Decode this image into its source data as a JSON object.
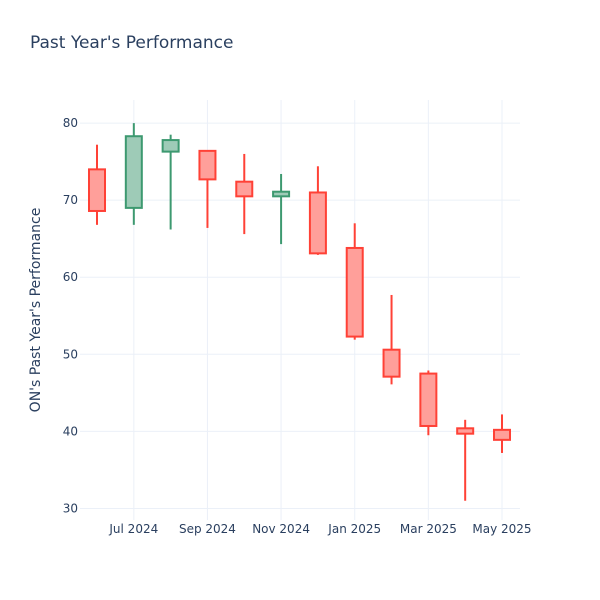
{
  "page": {
    "title": "Past Year's Performance"
  },
  "chart_data": {
    "type": "candlestick",
    "title": "Past Year's Performance",
    "xlabel": "",
    "ylabel": "ON's Past Year's Performance",
    "ylim": [
      28.5,
      83
    ],
    "y_ticks": [
      30,
      40,
      50,
      60,
      70,
      80
    ],
    "x_ticks": [
      "Jul 2024",
      "Sep 2024",
      "Nov 2024",
      "Jan 2025",
      "Mar 2025",
      "May 2025"
    ],
    "grid": true,
    "colors": {
      "up": "#3d9970",
      "up_fill": "#9ecbb7",
      "down": "#ff4136",
      "down_fill": "#ff9f9a",
      "grid": "#ebf0f8",
      "text": "#2a3f5f"
    },
    "candles": [
      {
        "month": "Jun 2024",
        "open": 74.0,
        "high": 77.2,
        "low": 66.8,
        "close": 68.6
      },
      {
        "month": "Jul 2024",
        "open": 69.0,
        "high": 80.0,
        "low": 66.8,
        "close": 78.3
      },
      {
        "month": "Aug 2024",
        "open": 76.3,
        "high": 78.5,
        "low": 66.2,
        "close": 77.8
      },
      {
        "month": "Sep 2024",
        "open": 76.4,
        "high": 76.4,
        "low": 66.4,
        "close": 72.7
      },
      {
        "month": "Oct 2024",
        "open": 72.4,
        "high": 76.0,
        "low": 65.6,
        "close": 70.5
      },
      {
        "month": "Nov 2024",
        "open": 70.5,
        "high": 73.4,
        "low": 64.3,
        "close": 71.1
      },
      {
        "month": "Dec 2024",
        "open": 71.0,
        "high": 74.4,
        "low": 62.9,
        "close": 63.1
      },
      {
        "month": "Jan 2025",
        "open": 63.8,
        "high": 67.0,
        "low": 51.9,
        "close": 52.3
      },
      {
        "month": "Feb 2025",
        "open": 50.6,
        "high": 57.7,
        "low": 46.1,
        "close": 47.1
      },
      {
        "month": "Mar 2025",
        "open": 47.5,
        "high": 47.9,
        "low": 39.5,
        "close": 40.7
      },
      {
        "month": "Apr 2025",
        "open": 40.4,
        "high": 41.5,
        "low": 31.0,
        "close": 39.7
      },
      {
        "month": "May 2025",
        "open": 40.2,
        "high": 42.2,
        "low": 37.2,
        "close": 38.9
      }
    ]
  }
}
